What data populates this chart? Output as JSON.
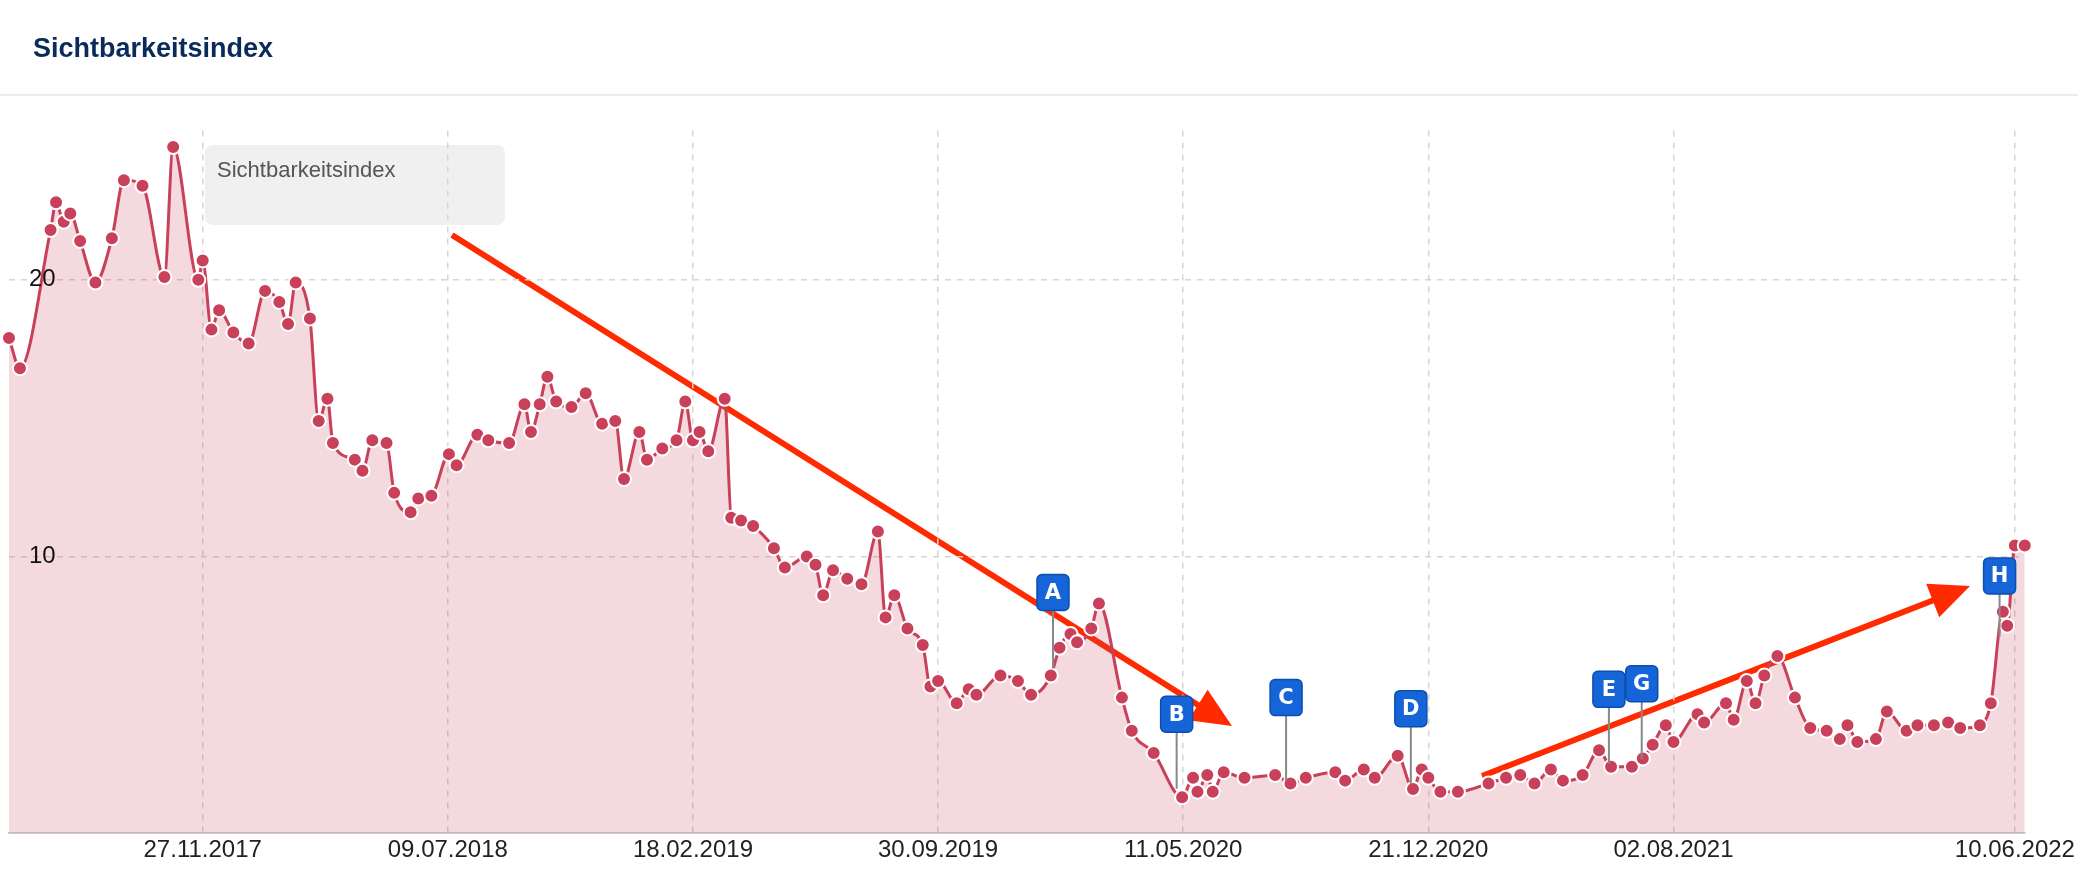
{
  "chart_data": {
    "type": "area",
    "title": "Sichtbarkeitsindex",
    "x": [
      "2017-06-03",
      "2017-06-13",
      "2017-07-11",
      "2017-07-16",
      "2017-07-23",
      "2017-07-29",
      "2017-08-07",
      "2017-08-21",
      "2017-09-05",
      "2017-09-16",
      "2017-10-03",
      "2017-10-23",
      "2017-10-31",
      "2017-11-23",
      "2017-11-27",
      "2017-12-05",
      "2017-12-12",
      "2017-12-25",
      "2018-01-08",
      "2018-01-23",
      "2018-02-05",
      "2018-02-13",
      "2018-02-20",
      "2018-03-05",
      "2018-03-13",
      "2018-03-21",
      "2018-03-26",
      "2018-04-15",
      "2018-04-22",
      "2018-05-01",
      "2018-05-14",
      "2018-05-21",
      "2018-06-05",
      "2018-06-12",
      "2018-06-24",
      "2018-07-10",
      "2018-07-17",
      "2018-08-05",
      "2018-08-15",
      "2018-09-03",
      "2018-09-17",
      "2018-09-23",
      "2018-10-01",
      "2018-10-08",
      "2018-10-16",
      "2018-10-30",
      "2018-11-12",
      "2018-11-27",
      "2018-12-09",
      "2018-12-17",
      "2018-12-31",
      "2019-01-07",
      "2019-01-21",
      "2019-02-03",
      "2019-02-11",
      "2019-02-18",
      "2019-02-24",
      "2019-03-04",
      "2019-03-19",
      "2019-03-25",
      "2019-04-03",
      "2019-04-14",
      "2019-05-03",
      "2019-05-13",
      "2019-06-02",
      "2019-06-10",
      "2019-06-17",
      "2019-06-26",
      "2019-07-09",
      "2019-07-22",
      "2019-08-06",
      "2019-08-13",
      "2019-08-21",
      "2019-09-02",
      "2019-09-16",
      "2019-09-23",
      "2019-09-30",
      "2019-10-17",
      "2019-10-28",
      "2019-11-04",
      "2019-11-26",
      "2019-12-12",
      "2019-12-24",
      "2020-01-11",
      "2020-01-19",
      "2020-01-29",
      "2020-02-04",
      "2020-02-17",
      "2020-02-24",
      "2020-03-16",
      "2020-03-25",
      "2020-04-14",
      "2020-05-10",
      "2020-05-20",
      "2020-05-24",
      "2020-06-02",
      "2020-06-07",
      "2020-06-17",
      "2020-07-06",
      "2020-08-03",
      "2020-08-17",
      "2020-08-31",
      "2020-09-27",
      "2020-10-06",
      "2020-10-23",
      "2020-11-02",
      "2020-11-23",
      "2020-12-07",
      "2020-12-15",
      "2020-12-21",
      "2021-01-01",
      "2021-01-17",
      "2021-02-14",
      "2021-03-02",
      "2021-03-15",
      "2021-03-28",
      "2021-04-12",
      "2021-04-23",
      "2021-05-11",
      "2021-05-26",
      "2021-06-06",
      "2021-06-25",
      "2021-07-05",
      "2021-07-14",
      "2021-07-26",
      "2021-08-02",
      "2021-08-24",
      "2021-08-30",
      "2021-09-19",
      "2021-09-26",
      "2021-10-08",
      "2021-10-16",
      "2021-10-24",
      "2021-11-05",
      "2021-11-21",
      "2021-12-05",
      "2021-12-20",
      "2022-01-01",
      "2022-01-08",
      "2022-01-17",
      "2022-02-03",
      "2022-02-13",
      "2022-03-03",
      "2022-03-13",
      "2022-03-28",
      "2022-04-10",
      "2022-04-21",
      "2022-05-09",
      "2022-05-19",
      "2022-05-30",
      "2022-06-03",
      "2022-06-10",
      "2022-06-19"
    ],
    "values": [
      17.9,
      16.8,
      21.8,
      22.8,
      22.1,
      22.4,
      21.4,
      19.9,
      21.5,
      23.6,
      23.4,
      20.1,
      24.8,
      20.0,
      20.7,
      18.2,
      18.9,
      18.1,
      17.7,
      19.6,
      19.2,
      18.4,
      19.9,
      18.6,
      14.9,
      15.7,
      14.1,
      13.5,
      13.1,
      14.2,
      14.1,
      12.3,
      11.6,
      12.1,
      12.2,
      13.7,
      13.3,
      14.4,
      14.2,
      14.1,
      15.5,
      14.5,
      15.5,
      16.5,
      15.6,
      15.4,
      15.9,
      14.8,
      14.9,
      12.8,
      14.5,
      13.5,
      13.9,
      14.2,
      15.6,
      14.2,
      14.5,
      13.8,
      15.7,
      11.4,
      11.3,
      11.1,
      10.3,
      9.6,
      10.0,
      9.7,
      8.6,
      9.5,
      9.2,
      9.0,
      10.9,
      7.8,
      8.6,
      7.4,
      6.8,
      5.3,
      5.5,
      4.7,
      5.2,
      5.0,
      5.7,
      5.5,
      5.0,
      5.7,
      6.7,
      7.2,
      6.9,
      7.4,
      8.3,
      4.9,
      3.7,
      2.9,
      1.3,
      2.0,
      1.5,
      2.1,
      1.5,
      2.2,
      2.0,
      2.1,
      1.8,
      2.0,
      2.2,
      1.9,
      2.3,
      2.0,
      2.8,
      1.6,
      2.3,
      2.0,
      1.5,
      1.5,
      1.8,
      2.0,
      2.1,
      1.8,
      2.3,
      1.9,
      2.1,
      3.0,
      2.4,
      2.4,
      2.7,
      3.2,
      3.9,
      3.3,
      4.3,
      4.0,
      4.7,
      4.1,
      5.5,
      4.7,
      5.7,
      6.4,
      4.9,
      3.8,
      3.7,
      3.4,
      3.9,
      3.3,
      3.4,
      4.4,
      3.7,
      3.9,
      3.9,
      4.0,
      3.8,
      3.9,
      4.7,
      8.0,
      7.5,
      10.4,
      10.4
    ],
    "color": "#c8405a",
    "xlim": [
      "2017-06-03",
      "2022-06-19"
    ],
    "xticks": [
      {
        "value": "2017-11-27",
        "label": "27.11.2017"
      },
      {
        "value": "2018-07-09",
        "label": "09.07.2018"
      },
      {
        "value": "2019-02-18",
        "label": "18.02.2019"
      },
      {
        "value": "2019-09-30",
        "label": "30.09.2019"
      },
      {
        "value": "2020-05-11",
        "label": "11.05.2020"
      },
      {
        "value": "2020-12-21",
        "label": "21.12.2020"
      },
      {
        "value": "2021-08-02",
        "label": "02.08.2021"
      },
      {
        "value": "2022-06-10",
        "label": "10.06.2022"
      }
    ],
    "ylim": [
      0,
      25.4
    ],
    "yticks": [
      10,
      20
    ],
    "grid": true,
    "marker": "circle",
    "annotations": [
      "Sichtbarkeitsindex",
      {
        "text": "A",
        "x": "2020-01-13",
        "y": 8.7
      },
      {
        "text": "B",
        "x": "2020-05-05",
        "y": 4.3
      },
      {
        "text": "C",
        "x": "2020-08-13",
        "y": 4.9
      },
      {
        "text": "D",
        "x": "2020-12-05",
        "y": 4.5
      },
      {
        "text": "E",
        "x": "2021-06-04",
        "y": 5.2
      },
      {
        "text": "G",
        "x": "2021-07-04",
        "y": 5.4
      },
      {
        "text": "H",
        "x": "2022-05-27",
        "y": 9.3
      }
    ]
  }
}
